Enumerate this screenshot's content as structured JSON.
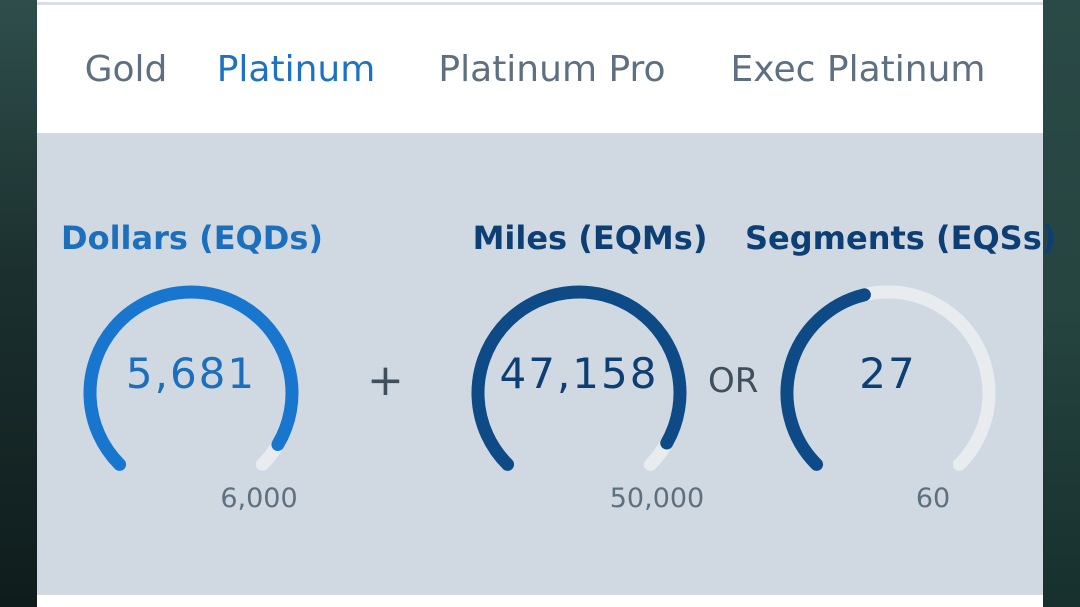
{
  "tabs": [
    {
      "label": "Gold",
      "active": false
    },
    {
      "label": "Platinum",
      "active": true
    },
    {
      "label": "Platinum Pro",
      "active": false
    },
    {
      "label": "Exec Platinum",
      "active": false
    }
  ],
  "metrics": [
    {
      "title": "Dollars (EQDs)",
      "value": "5,681",
      "target": "6,000",
      "progress": 0.9468,
      "color": "#1876cf",
      "title_color": "#1c6fbd",
      "value_color": "#1c6fbd"
    },
    {
      "title": "Miles (EQMs)",
      "value": "47,158",
      "target": "50,000",
      "progress": 0.9432,
      "color": "#0d4a86",
      "title_color": "#0d3f74",
      "value_color": "#0d3f74"
    },
    {
      "title": "Segments (EQSs)",
      "value": "27",
      "target": "60",
      "progress": 0.45,
      "color": "#0d4a86",
      "title_color": "#0d3f74",
      "value_color": "#0d3f74"
    }
  ],
  "operators": {
    "plus": "+",
    "or": "OR"
  },
  "colors": {
    "track": "#e8ecef",
    "tab_active": "#1c72c4",
    "tab_inactive": "#5e7080",
    "panel_bg": "#d0d9e2"
  }
}
